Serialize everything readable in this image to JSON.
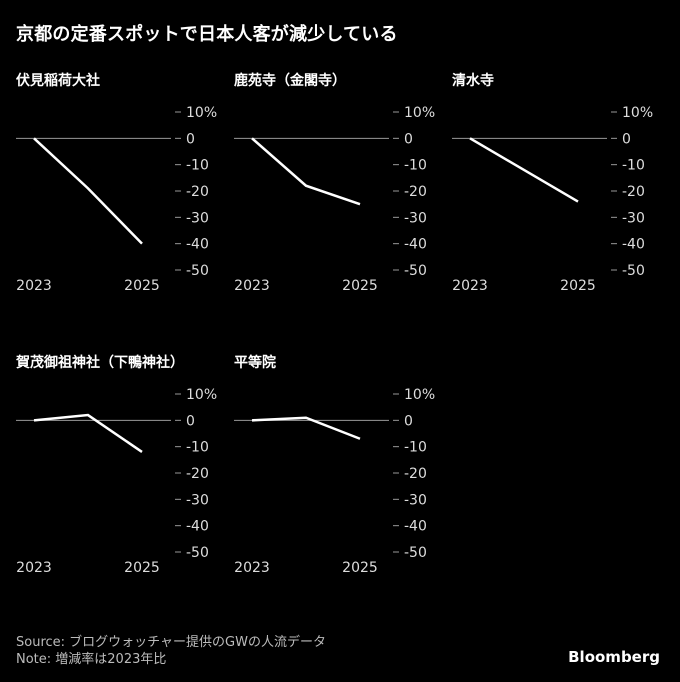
{
  "title": "京都の定番スポットで日本人客が減少している",
  "chart_data": [
    {
      "type": "line",
      "title": "伏見稲荷大社",
      "x": [
        2023,
        2024,
        2025
      ],
      "values": [
        0,
        -19,
        -40
      ],
      "ylim": [
        -50,
        10
      ],
      "yticks": [
        "10%",
        "0",
        "-10",
        "-20",
        "-30",
        "-40",
        "-50"
      ],
      "xticks": [
        "2023",
        "2025"
      ]
    },
    {
      "type": "line",
      "title": "鹿苑寺（金閣寺）",
      "x": [
        2023,
        2024,
        2025
      ],
      "values": [
        0,
        -18,
        -25
      ],
      "ylim": [
        -50,
        10
      ],
      "yticks": [
        "10%",
        "0",
        "-10",
        "-20",
        "-30",
        "-40",
        "-50"
      ],
      "xticks": [
        "2023",
        "2025"
      ]
    },
    {
      "type": "line",
      "title": "清水寺",
      "x": [
        2023,
        2024,
        2025
      ],
      "values": [
        0,
        -12,
        -24
      ],
      "ylim": [
        -50,
        10
      ],
      "yticks": [
        "10%",
        "0",
        "-10",
        "-20",
        "-30",
        "-40",
        "-50"
      ],
      "xticks": [
        "2023",
        "2025"
      ]
    },
    {
      "type": "line",
      "title": "賀茂御祖神社（下鴨神社）",
      "x": [
        2023,
        2024,
        2025
      ],
      "values": [
        0,
        2,
        -12
      ],
      "ylim": [
        -50,
        10
      ],
      "yticks": [
        "10%",
        "0",
        "-10",
        "-20",
        "-30",
        "-40",
        "-50"
      ],
      "xticks": [
        "2023",
        "2025"
      ]
    },
    {
      "type": "line",
      "title": "平等院",
      "x": [
        2023,
        2024,
        2025
      ],
      "values": [
        0,
        1,
        -7
      ],
      "ylim": [
        -50,
        10
      ],
      "yticks": [
        "10%",
        "0",
        "-10",
        "-20",
        "-30",
        "-40",
        "-50"
      ],
      "xticks": [
        "2023",
        "2025"
      ]
    }
  ],
  "footer": {
    "source": "Source: ブログウォッチャー提供のGWの人流データ",
    "note": "Note: 増減率は2023年比"
  },
  "brand": "Bloomberg",
  "colors": {
    "background": "#000000",
    "line": "#ffffff",
    "axis": "#999999"
  }
}
